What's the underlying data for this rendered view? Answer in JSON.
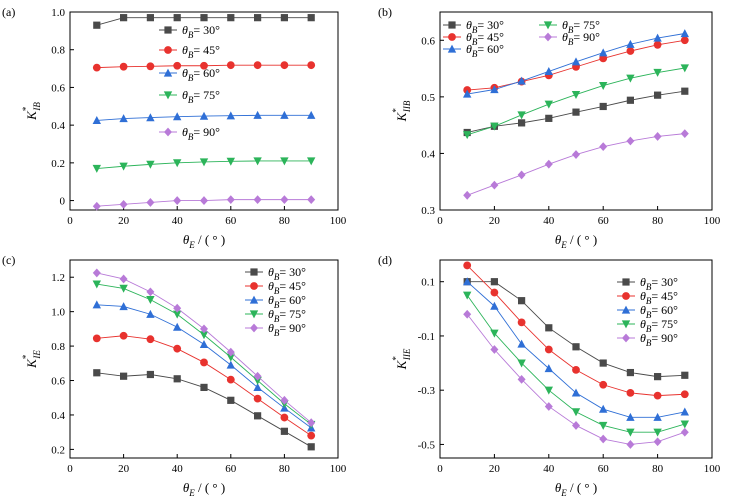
{
  "chart_data": [
    {
      "type": "line",
      "panel": "(a)",
      "xlabel": "θ_E / (°)",
      "ylabel": "K*_IB",
      "xlim": [
        0,
        100
      ],
      "ylim": [
        -0.05,
        1.0
      ],
      "xticks": [
        0,
        20,
        40,
        60,
        80,
        100
      ],
      "yticks": [
        0,
        0.2,
        0.4,
        0.6,
        0.8,
        1.0
      ],
      "ytick_labels": [
        "0",
        "0.2",
        "0.4",
        "0.6",
        "0.8",
        "1.0"
      ],
      "grid": false,
      "legend_placement": "inline",
      "x": [
        10,
        20,
        30,
        40,
        50,
        60,
        70,
        80,
        90
      ],
      "series": [
        {
          "name": "θ_B = 30°",
          "marker": "square",
          "color": "#4a4a4a",
          "values": [
            0.93,
            0.97,
            0.97,
            0.97,
            0.97,
            0.97,
            0.97,
            0.97,
            0.97
          ]
        },
        {
          "name": "θ_B = 45°",
          "marker": "circle",
          "color": "#e8322e",
          "values": [
            0.705,
            0.71,
            0.712,
            0.715,
            0.715,
            0.718,
            0.718,
            0.718,
            0.718
          ]
        },
        {
          "name": "θ_B = 60°",
          "marker": "triangle-up",
          "color": "#2f6fd6",
          "values": [
            0.425,
            0.435,
            0.44,
            0.445,
            0.448,
            0.45,
            0.452,
            0.452,
            0.452
          ]
        },
        {
          "name": "θ_B = 75°",
          "marker": "triangle-down",
          "color": "#2cb45a",
          "values": [
            0.17,
            0.182,
            0.192,
            0.2,
            0.205,
            0.208,
            0.21,
            0.21,
            0.21
          ]
        },
        {
          "name": "θ_B = 90°",
          "marker": "diamond",
          "color": "#b87ad8",
          "values": [
            -0.03,
            -0.02,
            -0.01,
            0.0,
            0.0,
            0.005,
            0.005,
            0.005,
            0.005
          ]
        }
      ]
    },
    {
      "type": "line",
      "panel": "(b)",
      "xlabel": "θ_E / (°)",
      "ylabel": "K*_IIB",
      "xlim": [
        0,
        100
      ],
      "ylim": [
        0.3,
        0.65
      ],
      "xticks": [
        0,
        20,
        40,
        60,
        80,
        100
      ],
      "yticks": [
        0.3,
        0.4,
        0.5,
        0.6
      ],
      "ytick_labels": [
        "0.3",
        "0.4",
        "0.5",
        "0.6"
      ],
      "grid": false,
      "legend_placement": "top-left",
      "x": [
        10,
        20,
        30,
        40,
        50,
        60,
        70,
        80,
        90
      ],
      "series": [
        {
          "name": "θ_B = 30°",
          "marker": "square",
          "color": "#4a4a4a",
          "values": [
            0.437,
            0.448,
            0.454,
            0.462,
            0.473,
            0.483,
            0.494,
            0.503,
            0.51
          ]
        },
        {
          "name": "θ_B = 45°",
          "marker": "circle",
          "color": "#e8322e",
          "values": [
            0.512,
            0.516,
            0.527,
            0.538,
            0.553,
            0.568,
            0.581,
            0.592,
            0.6
          ]
        },
        {
          "name": "θ_B = 60°",
          "marker": "triangle-up",
          "color": "#2f6fd6",
          "values": [
            0.505,
            0.513,
            0.528,
            0.545,
            0.562,
            0.578,
            0.593,
            0.604,
            0.612
          ]
        },
        {
          "name": "θ_B = 75°",
          "marker": "triangle-down",
          "color": "#2cb45a",
          "values": [
            0.433,
            0.448,
            0.468,
            0.487,
            0.504,
            0.52,
            0.533,
            0.543,
            0.551
          ]
        },
        {
          "name": "θ_B = 90°",
          "marker": "diamond",
          "color": "#b87ad8",
          "values": [
            0.326,
            0.344,
            0.362,
            0.381,
            0.398,
            0.412,
            0.422,
            0.43,
            0.435
          ]
        }
      ]
    },
    {
      "type": "line",
      "panel": "(c)",
      "xlabel": "θ_E / (°)",
      "ylabel": "K*_IE",
      "xlim": [
        0,
        100
      ],
      "ylim": [
        0.15,
        1.3
      ],
      "xticks": [
        0,
        20,
        40,
        60,
        80,
        100
      ],
      "yticks": [
        0.2,
        0.4,
        0.6,
        0.8,
        1.0,
        1.2
      ],
      "ytick_labels": [
        "0.2",
        "0.4",
        "0.6",
        "0.8",
        "1.0",
        "1.2"
      ],
      "grid": false,
      "legend_placement": "top-right",
      "x": [
        10,
        20,
        30,
        40,
        50,
        60,
        70,
        80,
        90
      ],
      "series": [
        {
          "name": "θ_B = 30°",
          "marker": "square",
          "color": "#4a4a4a",
          "values": [
            0.645,
            0.625,
            0.635,
            0.61,
            0.56,
            0.485,
            0.395,
            0.305,
            0.215
          ]
        },
        {
          "name": "θ_B = 45°",
          "marker": "circle",
          "color": "#e8322e",
          "values": [
            0.845,
            0.86,
            0.84,
            0.785,
            0.705,
            0.605,
            0.495,
            0.385,
            0.28
          ]
        },
        {
          "name": "θ_B = 60°",
          "marker": "triangle-up",
          "color": "#2f6fd6",
          "values": [
            1.04,
            1.03,
            0.985,
            0.91,
            0.81,
            0.69,
            0.56,
            0.44,
            0.325
          ]
        },
        {
          "name": "θ_B = 75°",
          "marker": "triangle-down",
          "color": "#2cb45a",
          "values": [
            1.16,
            1.135,
            1.07,
            0.985,
            0.865,
            0.735,
            0.6,
            0.465,
            0.345
          ]
        },
        {
          "name": "θ_B = 90°",
          "marker": "diamond",
          "color": "#b87ad8",
          "values": [
            1.225,
            1.19,
            1.115,
            1.02,
            0.9,
            0.765,
            0.625,
            0.485,
            0.355
          ]
        }
      ]
    },
    {
      "type": "line",
      "panel": "(d)",
      "xlabel": "θ_E / (°)",
      "ylabel": "K*_IIE",
      "xlim": [
        0,
        100
      ],
      "ylim": [
        -0.55,
        0.18
      ],
      "xticks": [
        0,
        20,
        40,
        60,
        80,
        100
      ],
      "yticks": [
        0.1,
        -0.1,
        -0.3,
        -0.5
      ],
      "ytick_labels": [
        "0.1",
        "-0.1",
        "-0.3",
        "-0.5"
      ],
      "grid": false,
      "legend_placement": "top-right",
      "x": [
        10,
        20,
        30,
        40,
        50,
        60,
        70,
        80,
        90
      ],
      "series": [
        {
          "name": "θ_B = 30°",
          "marker": "square",
          "color": "#4a4a4a",
          "values": [
            0.1,
            0.1,
            0.03,
            -0.07,
            -0.14,
            -0.2,
            -0.235,
            -0.25,
            -0.245
          ]
        },
        {
          "name": "θ_B = 45°",
          "marker": "circle",
          "color": "#e8322e",
          "values": [
            0.16,
            0.06,
            -0.05,
            -0.15,
            -0.225,
            -0.28,
            -0.31,
            -0.32,
            -0.315
          ]
        },
        {
          "name": "θ_B = 60°",
          "marker": "triangle-up",
          "color": "#2f6fd6",
          "values": [
            0.1,
            0.01,
            -0.13,
            -0.22,
            -0.31,
            -0.37,
            -0.4,
            -0.4,
            -0.38
          ]
        },
        {
          "name": "θ_B = 75°",
          "marker": "triangle-down",
          "color": "#2cb45a",
          "values": [
            0.05,
            -0.09,
            -0.2,
            -0.3,
            -0.38,
            -0.43,
            -0.455,
            -0.455,
            -0.425
          ]
        },
        {
          "name": "θ_B = 90°",
          "marker": "diamond",
          "color": "#b87ad8",
          "values": [
            -0.02,
            -0.15,
            -0.26,
            -0.36,
            -0.43,
            -0.48,
            -0.5,
            -0.49,
            -0.455
          ]
        }
      ]
    }
  ]
}
